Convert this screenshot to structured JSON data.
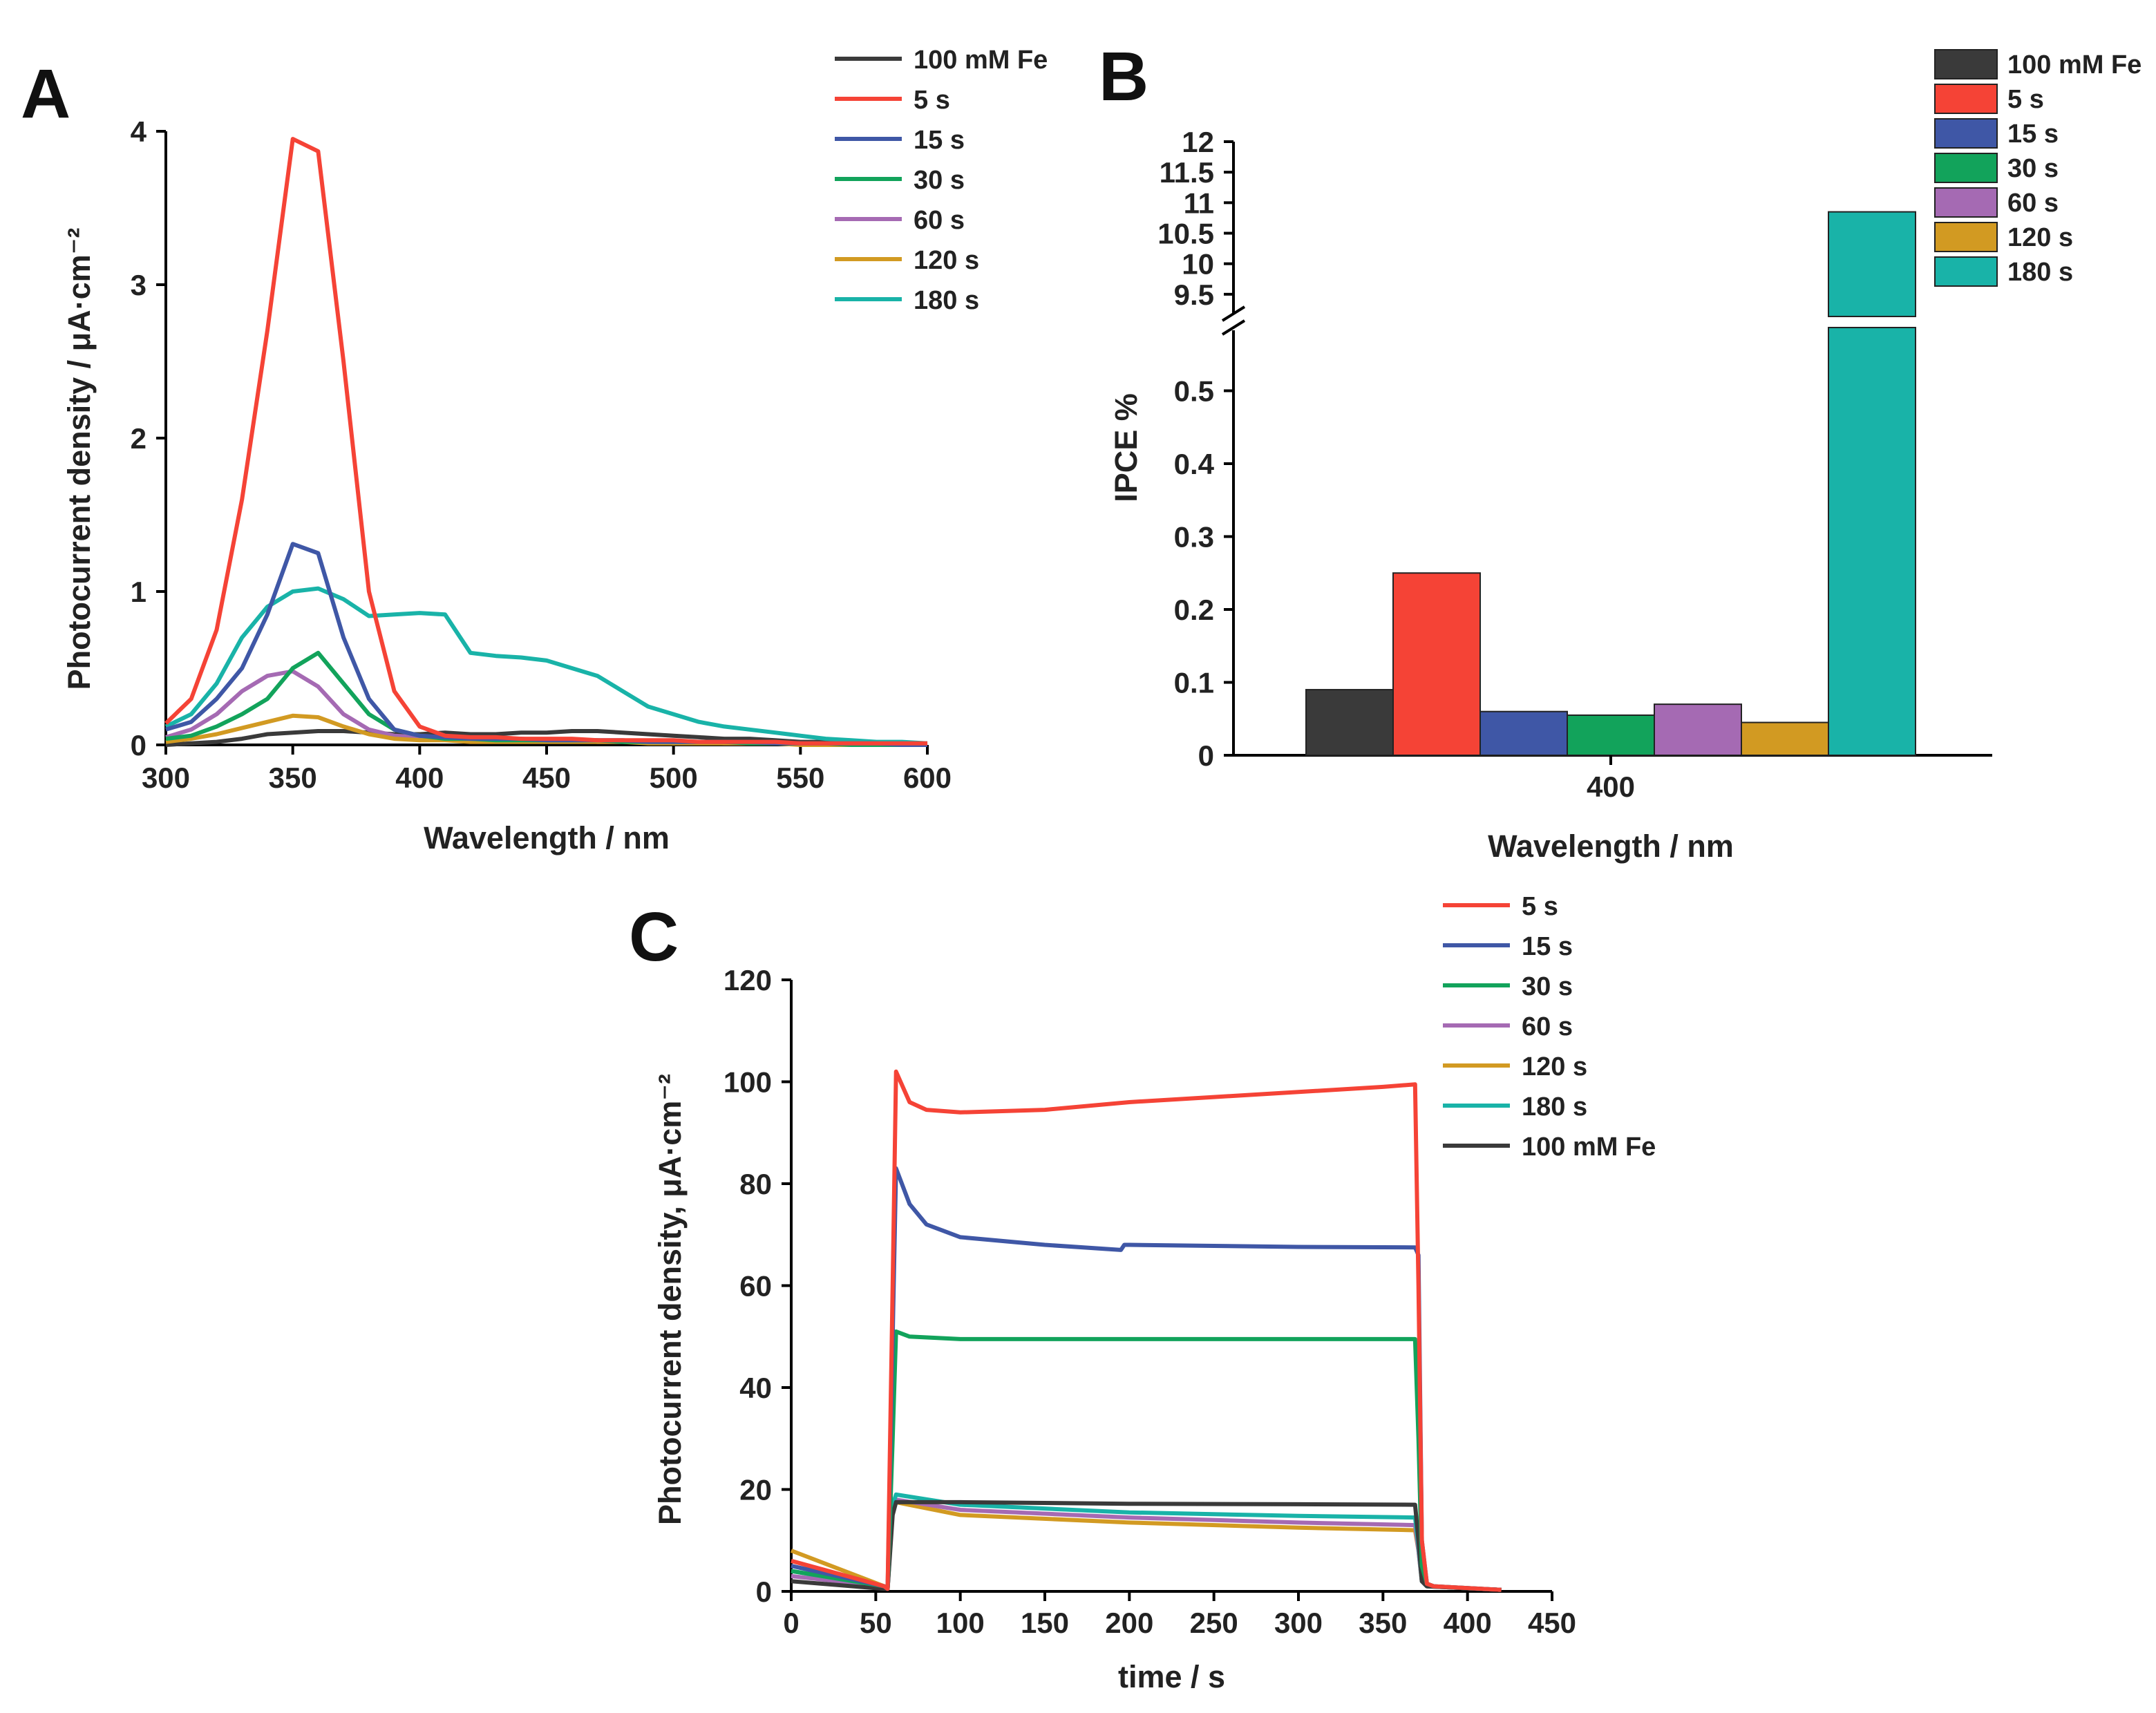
{
  "colors": {
    "fe": "#3a3a3a",
    "s5": "#f54336",
    "s15": "#3f57a6",
    "s30": "#12a35b",
    "s60": "#a56ab3",
    "s120": "#d29a22",
    "s180": "#19b3a8"
  },
  "chart_data": [
    {
      "type": "line",
      "panel": "A",
      "xlabel": "Wavelength / nm",
      "ylabel": "Photocurrent density / μA·cm⁻²",
      "xlim": [
        300,
        600
      ],
      "ylim": [
        0,
        4
      ],
      "xticks": [
        "300",
        "350",
        "400",
        "450",
        "500",
        "550",
        "600"
      ],
      "yticks": [
        "0",
        "1",
        "2",
        "3",
        "4"
      ],
      "legend": [
        "100 mM Fe",
        "5 s",
        "15 s",
        "30 s",
        "60 s",
        "120 s",
        "180 s"
      ],
      "x": [
        300,
        310,
        320,
        330,
        340,
        350,
        360,
        370,
        380,
        390,
        400,
        410,
        420,
        430,
        440,
        450,
        460,
        470,
        480,
        490,
        500,
        510,
        520,
        530,
        540,
        550,
        560,
        570,
        580,
        590,
        600
      ],
      "series": [
        {
          "name": "100 mM Fe",
          "color_key": "fe",
          "values": [
            0.0,
            0.01,
            0.02,
            0.04,
            0.07,
            0.08,
            0.09,
            0.09,
            0.08,
            0.07,
            0.07,
            0.08,
            0.07,
            0.07,
            0.08,
            0.08,
            0.09,
            0.09,
            0.08,
            0.07,
            0.06,
            0.05,
            0.04,
            0.04,
            0.03,
            0.02,
            0.02,
            0.01,
            0.01,
            0.01,
            0.0
          ]
        },
        {
          "name": "5 s",
          "color_key": "s5",
          "values": [
            0.14,
            0.3,
            0.75,
            1.6,
            2.7,
            3.95,
            3.87,
            2.5,
            1.0,
            0.35,
            0.12,
            0.06,
            0.05,
            0.05,
            0.04,
            0.04,
            0.04,
            0.03,
            0.03,
            0.03,
            0.03,
            0.02,
            0.02,
            0.02,
            0.02,
            0.01,
            0.01,
            0.01,
            0.01,
            0.01,
            0.01
          ]
        },
        {
          "name": "15 s",
          "color_key": "s15",
          "values": [
            0.1,
            0.15,
            0.3,
            0.5,
            0.85,
            1.31,
            1.25,
            0.7,
            0.3,
            0.1,
            0.06,
            0.05,
            0.04,
            0.04,
            0.04,
            0.03,
            0.03,
            0.03,
            0.03,
            0.02,
            0.02,
            0.02,
            0.02,
            0.02,
            0.01,
            0.01,
            0.01,
            0.01,
            0.01,
            0.0,
            0.0
          ]
        },
        {
          "name": "30 s",
          "color_key": "s30",
          "values": [
            0.04,
            0.06,
            0.12,
            0.2,
            0.3,
            0.5,
            0.6,
            0.4,
            0.2,
            0.1,
            0.06,
            0.04,
            0.04,
            0.03,
            0.03,
            0.03,
            0.03,
            0.03,
            0.02,
            0.02,
            0.02,
            0.02,
            0.02,
            0.01,
            0.01,
            0.01,
            0.01,
            0.0,
            0.0,
            0.0,
            0.0
          ]
        },
        {
          "name": "60 s",
          "color_key": "s60",
          "values": [
            0.05,
            0.1,
            0.2,
            0.35,
            0.45,
            0.48,
            0.38,
            0.2,
            0.1,
            0.06,
            0.05,
            0.04,
            0.03,
            0.03,
            0.03,
            0.03,
            0.03,
            0.02,
            0.02,
            0.02,
            0.02,
            0.02,
            0.01,
            0.01,
            0.01,
            0.01,
            0.0,
            0.0,
            0.0,
            0.0,
            0.0
          ]
        },
        {
          "name": "120 s",
          "color_key": "s120",
          "values": [
            0.02,
            0.04,
            0.07,
            0.11,
            0.15,
            0.19,
            0.18,
            0.12,
            0.07,
            0.04,
            0.03,
            0.03,
            0.02,
            0.02,
            0.02,
            0.02,
            0.02,
            0.02,
            0.02,
            0.01,
            0.01,
            0.01,
            0.01,
            0.01,
            0.01,
            0.0,
            0.0,
            0.0,
            0.0,
            0.0,
            0.0
          ]
        },
        {
          "name": "180 s",
          "color_key": "s180",
          "values": [
            0.12,
            0.2,
            0.4,
            0.7,
            0.9,
            1.0,
            1.02,
            0.95,
            0.84,
            0.85,
            0.86,
            0.85,
            0.6,
            0.58,
            0.57,
            0.55,
            0.5,
            0.45,
            0.35,
            0.25,
            0.2,
            0.15,
            0.12,
            0.1,
            0.08,
            0.06,
            0.04,
            0.03,
            0.02,
            0.02,
            0.01
          ]
        }
      ]
    },
    {
      "type": "bar",
      "panel": "B",
      "xlabel": "Wavelength / nm",
      "ylabel": "IPCE %",
      "categories": [
        "400"
      ],
      "axis_break": true,
      "ylim_lower": [
        0,
        0.6
      ],
      "ylim_upper": [
        9,
        12
      ],
      "yticks_lower": [
        "0",
        "0.1",
        "0.2",
        "0.3",
        "0.4",
        "0.5"
      ],
      "yticks_upper": [
        "9.5",
        "10",
        "10.5",
        "11",
        "11.5",
        "12"
      ],
      "legend": [
        "100 mM Fe",
        "5 s",
        "15 s",
        "30 s",
        "60 s",
        "120 s",
        "180 s"
      ],
      "series": [
        {
          "name": "100 mM Fe",
          "color_key": "fe",
          "values": [
            0.09
          ]
        },
        {
          "name": "5 s",
          "color_key": "s5",
          "values": [
            0.25
          ]
        },
        {
          "name": "15 s",
          "color_key": "s15",
          "values": [
            0.06
          ]
        },
        {
          "name": "30 s",
          "color_key": "s30",
          "values": [
            0.055
          ]
        },
        {
          "name": "60 s",
          "color_key": "s60",
          "values": [
            0.07
          ]
        },
        {
          "name": "120 s",
          "color_key": "s120",
          "values": [
            0.045
          ]
        },
        {
          "name": "180 s",
          "color_key": "s180",
          "values": [
            10.85
          ]
        }
      ]
    },
    {
      "type": "line",
      "panel": "C",
      "xlabel": "time / s",
      "ylabel": "Photocurrent density, μA·cm⁻²",
      "xlim": [
        0,
        450
      ],
      "ylim": [
        0,
        120
      ],
      "xticks": [
        "0",
        "50",
        "100",
        "150",
        "200",
        "250",
        "300",
        "350",
        "400",
        "450"
      ],
      "yticks": [
        "0",
        "20",
        "40",
        "60",
        "80",
        "100",
        "120"
      ],
      "legend": [
        "5 s",
        "15 s",
        "30 s",
        "60 s",
        "120 s",
        "180 s",
        "100 mM Fe"
      ],
      "series": [
        {
          "name": "5 s",
          "color_key": "s5",
          "x": [
            0,
            55,
            57,
            60,
            62,
            70,
            80,
            100,
            150,
            200,
            250,
            300,
            350,
            369,
            371,
            373,
            376,
            380,
            420
          ],
          "y": [
            6,
            1,
            0.5,
            60,
            102,
            96,
            94.5,
            94,
            94.5,
            96,
            97,
            98,
            99,
            99.5,
            60,
            10,
            1.5,
            1,
            0.3
          ]
        },
        {
          "name": "15 s",
          "color_key": "s15",
          "x": [
            0,
            55,
            57,
            60,
            62,
            70,
            80,
            100,
            150,
            195,
            197,
            200,
            250,
            300,
            369,
            371,
            373,
            376,
            380,
            420
          ],
          "y": [
            5,
            1,
            0.5,
            50,
            83,
            76,
            72,
            69.5,
            68,
            67,
            68,
            68,
            67.8,
            67.6,
            67.5,
            66,
            10,
            1.5,
            1,
            0.3
          ]
        },
        {
          "name": "30 s",
          "color_key": "s30",
          "x": [
            0,
            55,
            57,
            60,
            62,
            70,
            100,
            200,
            300,
            369,
            371,
            373,
            376,
            380,
            420
          ],
          "y": [
            4,
            1,
            0.5,
            30,
            51,
            50,
            49.5,
            49.5,
            49.5,
            49.5,
            30,
            5,
            1.5,
            1,
            0.3
          ]
        },
        {
          "name": "60 s",
          "color_key": "s60",
          "x": [
            0,
            55,
            57,
            60,
            62,
            100,
            200,
            300,
            369,
            371,
            373,
            376,
            420
          ],
          "y": [
            3,
            1,
            0.5,
            17,
            18,
            16,
            14.5,
            13.5,
            13,
            8,
            2,
            1,
            0.3
          ]
        },
        {
          "name": "120 s",
          "color_key": "s120",
          "x": [
            0,
            55,
            57,
            60,
            62,
            100,
            200,
            300,
            369,
            371,
            373,
            376,
            420
          ],
          "y": [
            8,
            1,
            0.5,
            17,
            17.5,
            15,
            13.5,
            12.5,
            12,
            8,
            2,
            1,
            0.3
          ]
        },
        {
          "name": "180 s",
          "color_key": "s180",
          "x": [
            0,
            55,
            57,
            60,
            62,
            100,
            200,
            300,
            369,
            371,
            373,
            376,
            420
          ],
          "y": [
            4,
            1,
            0.5,
            17,
            19,
            17,
            15.5,
            14.8,
            14.5,
            9,
            2,
            1,
            0.3
          ]
        },
        {
          "name": "100 mM Fe",
          "color_key": "fe",
          "x": [
            0,
            55,
            57,
            60,
            62,
            100,
            200,
            300,
            369,
            371,
            373,
            376,
            420
          ],
          "y": [
            2,
            0.5,
            0.5,
            15,
            17.5,
            17.5,
            17.2,
            17.1,
            17,
            10,
            2,
            1,
            0.3
          ]
        }
      ]
    }
  ]
}
